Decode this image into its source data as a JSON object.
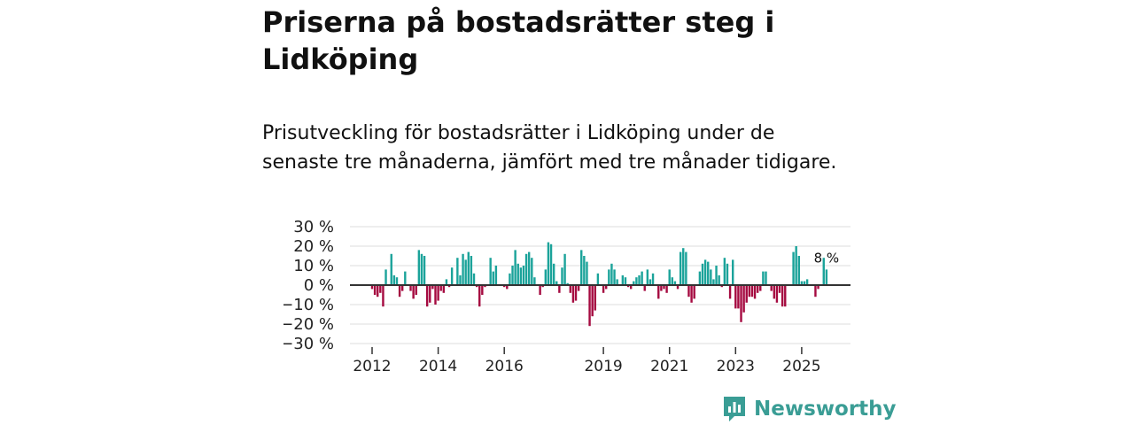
{
  "title": "Priserna på bostadsrätter steg i Lidköping",
  "subtitle": "Prisutveckling för bostadsrätter i Lidköping under de senaste tre månaderna, jämfört med tre månader tidigare.",
  "logo": {
    "text": "Newsworthy",
    "color": "#3a9d95"
  },
  "chart_data": {
    "type": "bar",
    "title": "",
    "xlabel": "",
    "ylabel": "",
    "start": "2012-01",
    "frequency": "monthly",
    "ylim": [
      -30,
      30
    ],
    "y_ticks": [
      30,
      20,
      10,
      0,
      -10,
      -20,
      -30
    ],
    "y_tick_labels": [
      "30 %",
      "20 %",
      "10 %",
      "0 %",
      "−10 %",
      "−20 %",
      "−30 %"
    ],
    "x_ticks": [
      2012,
      2014,
      2016,
      2019,
      2021,
      2023,
      2025
    ],
    "x_tick_labels": [
      "2012",
      "2014",
      "2016",
      "2019",
      "2021",
      "2023",
      "2025"
    ],
    "grid": true,
    "positive_color": "#1ba39a",
    "negative_color": "#a50a40",
    "annotation": "8 %",
    "values": [
      -2,
      -5,
      -6,
      -4,
      -11,
      8,
      0,
      16,
      5,
      4,
      -6,
      -3,
      7,
      0,
      -3,
      -7,
      -5,
      18,
      16,
      15,
      -11,
      -9,
      -2,
      -10,
      -8,
      -3,
      -4,
      3,
      -1,
      9,
      0,
      14,
      5,
      16,
      13,
      17,
      15,
      6,
      -1,
      -11,
      -5,
      -1,
      0,
      14,
      7,
      10,
      0,
      0,
      -1,
      -2,
      6,
      10,
      18,
      11,
      9,
      10,
      16,
      17,
      14,
      4,
      0,
      -5,
      -1,
      8,
      22,
      21,
      11,
      2,
      -4,
      9,
      16,
      1,
      -4,
      -9,
      -8,
      -3,
      18,
      15,
      12,
      -21,
      -16,
      -13,
      6,
      0,
      -4,
      -2,
      8,
      11,
      8,
      3,
      0,
      5,
      4,
      -1,
      -2,
      2,
      4,
      5,
      7,
      -3,
      8,
      3,
      6,
      0,
      -7,
      -3,
      -2,
      -4,
      8,
      4,
      2,
      -2,
      17,
      19,
      17,
      -6,
      -9,
      -7,
      0,
      7,
      11,
      13,
      12,
      8,
      3,
      10,
      5,
      -1,
      14,
      11,
      -7,
      13,
      -12,
      -12,
      -19,
      -14,
      -9,
      -6,
      -6,
      -7,
      -4,
      -3,
      7,
      7,
      0,
      -3,
      -7,
      -9,
      -4,
      -11,
      -11,
      0,
      0,
      17,
      20,
      15,
      2,
      2,
      3,
      0,
      0,
      -6,
      -2,
      0,
      14,
      8
    ]
  }
}
